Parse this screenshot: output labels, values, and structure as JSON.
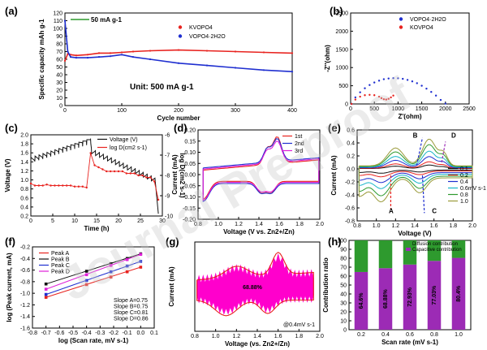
{
  "watermark": "Journal Pre-proof",
  "colors": {
    "red": "#e8231f",
    "blue": "#1f2fd0",
    "magenta": "#e020d8",
    "green": "#2e9a2e",
    "pink": "#ff00cc",
    "olive": "#9a9a3a",
    "black": "#111111",
    "cyan": "#15b5c8",
    "purple": "#9c2bb5"
  },
  "chart_data": [
    {
      "id": "a",
      "label": "(a)",
      "type": "line",
      "xlabel": "Cycle number",
      "ylabel": "Specific capacity mAh g-1",
      "xlim": [
        0,
        400
      ],
      "ylim": [
        0,
        120
      ],
      "xticks": [
        "0",
        "100",
        "200",
        "300",
        "400"
      ],
      "yticks": [
        "0",
        "10",
        "20",
        "30",
        "40",
        "50",
        "60",
        "70",
        "80",
        "90",
        "100",
        "110",
        "120"
      ],
      "annotations": [
        "50 mA g-1",
        "Unit: 500 mA g-1"
      ],
      "series": [
        {
          "name": "KVOPO4",
          "color": "red",
          "x": [
            0,
            5,
            10,
            20,
            40,
            60,
            80,
            100,
            120,
            150,
            200,
            250,
            300,
            350,
            400
          ],
          "y": [
            58,
            67,
            66,
            65,
            66,
            68,
            68,
            69,
            70,
            71,
            72,
            71,
            70,
            69,
            68
          ]
        },
        {
          "name": "VOPO4·2H2O",
          "color": "blue",
          "x": [
            0,
            5,
            10,
            20,
            40,
            60,
            80,
            100,
            120,
            150,
            200,
            250,
            300,
            350,
            400
          ],
          "y": [
            110,
            70,
            63,
            62,
            62,
            63,
            64,
            66,
            63,
            60,
            55,
            52,
            49,
            46,
            44
          ]
        }
      ]
    },
    {
      "id": "b",
      "label": "(b)",
      "type": "scatter",
      "xlabel": "Z'(ohm)",
      "ylabel": "-Z''(ohm)",
      "xlim": [
        0,
        2500
      ],
      "ylim": [
        0,
        2500
      ],
      "xticks": [
        "0",
        "500",
        "1000",
        "1500",
        "2000",
        "2500"
      ],
      "yticks": [
        "0",
        "500",
        "1000",
        "1500",
        "2000",
        "2500"
      ],
      "series": [
        {
          "name": "VOPO4·2H2O",
          "color": "blue",
          "x": [
            20,
            100,
            200,
            300,
            400,
            500,
            600,
            700,
            800,
            900,
            1000,
            1100,
            1200,
            1300,
            1400,
            1500,
            1600,
            1700,
            1800,
            1900,
            2000
          ],
          "y": [
            0,
            180,
            320,
            430,
            520,
            590,
            640,
            680,
            700,
            710,
            705,
            690,
            660,
            620,
            570,
            500,
            420,
            330,
            230,
            110,
            10
          ]
        },
        {
          "name": "KOVPO4",
          "color": "red",
          "x": [
            20,
            100,
            200,
            300,
            400,
            500,
            600,
            650,
            700,
            750,
            800,
            850,
            900
          ],
          "y": [
            0,
            120,
            200,
            240,
            250,
            240,
            200,
            160,
            130,
            120,
            140,
            180,
            230
          ]
        }
      ]
    },
    {
      "id": "c",
      "label": "(c)",
      "type": "line",
      "xlabel": "Time (h)",
      "ylabel": "Voltage (V)",
      "y2label": "log D(cm2 s-1)",
      "xlim": [
        0,
        33
      ],
      "ylim": [
        0.2,
        2.0
      ],
      "y2lim": [
        -10,
        -6
      ],
      "xticks": [
        "0",
        "5",
        "10",
        "15",
        "20",
        "25",
        "30"
      ],
      "yticks": [
        "0.2",
        "0.4",
        "0.6",
        "0.8",
        "1.0",
        "1.2",
        "1.4",
        "1.6",
        "1.8",
        "2.0"
      ],
      "y2ticks": [
        "-10",
        "-9",
        "-8",
        "-7",
        "-6"
      ],
      "series": [
        {
          "name": "Voltage (V)",
          "color": "black",
          "axis": "left"
        },
        {
          "name": "log D(cm2 s-1)",
          "color": "red",
          "axis": "right",
          "x": [
            0,
            1,
            2,
            3,
            4,
            5,
            6,
            7,
            8,
            9,
            10,
            11,
            12,
            13,
            14,
            15,
            16,
            17,
            18,
            19,
            20,
            21,
            22,
            23,
            24,
            25,
            26,
            27,
            28,
            29,
            30,
            31,
            32
          ],
          "y": [
            -8.4,
            -8.5,
            -8.5,
            -8.5,
            -8.45,
            -8.5,
            -8.5,
            -8.5,
            -8.5,
            -8.5,
            -8.5,
            -8.55,
            -8.55,
            -8.55,
            -8.6,
            -6.9,
            -7.5,
            -7.6,
            -7.7,
            -7.8,
            -7.8,
            -7.8,
            -7.8,
            -7.8,
            -7.9,
            -7.9,
            -7.9,
            -8.0,
            -8.0,
            -8.1,
            -8.1,
            -8.3,
            -9.2
          ]
        }
      ]
    },
    {
      "id": "d",
      "label": "(d)",
      "type": "line",
      "xlabel": "Voltage (V vs. Zn2+/Zn)",
      "ylabel": "Current (mA)",
      "xlim": [
        0.8,
        2.0
      ],
      "ylim": [
        -0.2,
        0.2
      ],
      "xticks": [
        "0.8",
        "1.0",
        "1.2",
        "1.4",
        "1.6",
        "1.8",
        "2.0"
      ],
      "yticks": [
        "-0.20",
        "-0.15",
        "-0.10",
        "-0.05",
        "0.00",
        "0.05",
        "0.10",
        "0.15",
        "0.20"
      ],
      "series": [
        {
          "name": "1st",
          "color": "red"
        },
        {
          "name": "2nd",
          "color": "blue"
        },
        {
          "name": "3rd",
          "color": "magenta"
        }
      ]
    },
    {
      "id": "e",
      "label": "(e)",
      "type": "line",
      "xlabel": "Voltage (V)",
      "ylabel": "Current (mA)",
      "xlim": [
        0.8,
        2.0
      ],
      "ylim": [
        -0.8,
        0.6
      ],
      "xticks": [
        "0.8",
        "1.0",
        "1.2",
        "1.4",
        "1.6",
        "1.8",
        "2.0"
      ],
      "yticks": [
        "-0.8",
        "-0.6",
        "-0.4",
        "-0.2",
        "0.0",
        "0.2",
        "0.4",
        "0.6"
      ],
      "peak_labels": [
        "A",
        "B",
        "C",
        "D"
      ],
      "series": [
        {
          "name": "0.1",
          "color": "black",
          "scale": 0.12
        },
        {
          "name": "0.2",
          "color": "red",
          "scale": 0.22
        },
        {
          "name": "0.4",
          "color": "blue",
          "scale": 0.38
        },
        {
          "name": "0.6mV s-1",
          "color": "cyan",
          "scale": 0.55
        },
        {
          "name": "0.8",
          "color": "green",
          "scale": 0.75
        },
        {
          "name": "1.0",
          "color": "olive",
          "scale": 0.92
        }
      ]
    },
    {
      "id": "f",
      "label": "(f)",
      "type": "scatter",
      "xlabel": "log (Scan rate, mV s-1)",
      "ylabel": "log (Peak current, mA)",
      "xlim": [
        -0.8,
        0.1
      ],
      "ylim": [
        -1.6,
        -0.2
      ],
      "xticks": [
        "-0.8",
        "-0.7",
        "-0.6",
        "-0.5",
        "-0.4",
        "-0.3",
        "-0.2",
        "-0.1",
        "0.0",
        "0.1"
      ],
      "yticks": [
        "-1.6",
        "-1.4",
        "-1.2",
        "-1.0",
        "-0.8",
        "-0.6",
        "-0.4",
        "-0.2"
      ],
      "annotations": [
        "Slope A=0.75",
        "Slope B=0.75",
        "Slope C=0.81",
        "Slope D=0.86"
      ],
      "series": [
        {
          "name": "Peak A",
          "color": "red",
          "x": [
            -0.7,
            -0.4,
            -0.22,
            -0.1,
            0.0
          ],
          "y": [
            -1.07,
            -0.85,
            -0.72,
            -0.63,
            -0.55
          ]
        },
        {
          "name": "Peak B",
          "color": "black",
          "x": [
            -0.7,
            -0.4,
            -0.22,
            -0.1,
            0.0
          ],
          "y": [
            -0.84,
            -0.62,
            -0.49,
            -0.4,
            -0.32
          ]
        },
        {
          "name": "Peak C",
          "color": "blue",
          "x": [
            -0.7,
            -0.4,
            -0.22,
            -0.1,
            0.0
          ],
          "y": [
            -1.02,
            -0.78,
            -0.63,
            -0.53,
            -0.45
          ]
        },
        {
          "name": "Peak D",
          "color": "magenta",
          "x": [
            -0.7,
            -0.4,
            -0.22,
            -0.1,
            0.0
          ],
          "y": [
            -0.93,
            -0.68,
            -0.52,
            -0.42,
            -0.33
          ]
        }
      ]
    },
    {
      "id": "g",
      "label": "(g)",
      "type": "area",
      "xlabel": "Voltage (vs. Zn2+/Zn)",
      "ylabel": "Current (mA)",
      "xlim": [
        0.8,
        2.0
      ],
      "ylim": [
        -1.0,
        1.0
      ],
      "xticks": [
        "0.8",
        "1.0",
        "1.2",
        "1.4",
        "1.6",
        "1.8",
        "2.0"
      ],
      "annotations": [
        "68.88%",
        "@0.4mV s-1"
      ]
    },
    {
      "id": "h",
      "label": "(h)",
      "type": "bar",
      "xlabel": "Scan rate (mV s-1)",
      "ylabel": "Contribution ratio",
      "categories": [
        "0.2",
        "0.4",
        "0.6",
        "0.8",
        "1.0"
      ],
      "ylim": [
        0,
        100
      ],
      "yticks": [
        "0",
        "10",
        "20",
        "30",
        "40",
        "50",
        "60",
        "70",
        "80",
        "90",
        "100"
      ],
      "series": [
        {
          "name": "Capacitive contribution",
          "color": "purple",
          "values": [
            64.6,
            68.88,
            72.93,
            77.03,
            80.4
          ]
        },
        {
          "name": "Diffusion contribution",
          "color": "green",
          "values": [
            35.4,
            31.12,
            27.07,
            22.97,
            19.6
          ]
        }
      ],
      "bar_labels": [
        "64.6%",
        "68.88%",
        "72.93%",
        "77.03%",
        "80.4%"
      ]
    }
  ]
}
